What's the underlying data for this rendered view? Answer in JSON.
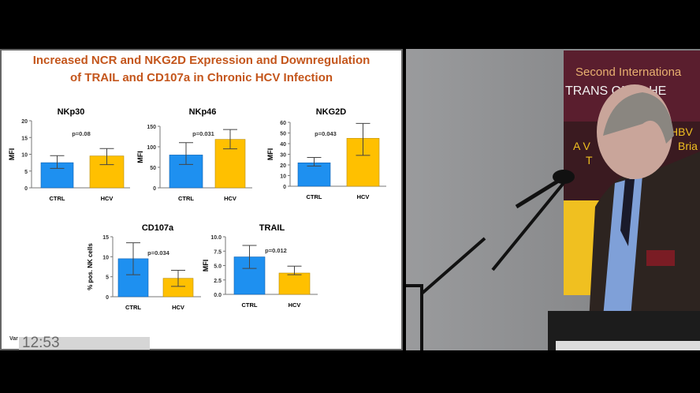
{
  "slide": {
    "title_line1": "Increased NCR and NKG2D Expression and Downregulation",
    "title_line2": "of TRAIL and CD107a in Chronic HCV Infection",
    "footer_fragment": "Var",
    "colors": {
      "ctrl": "#1e90f0",
      "hcv": "#ffc000",
      "title": "#c4561c"
    }
  },
  "video": {
    "timestamp": "12:53",
    "banner_line1": "Second Internationa",
    "banner_line2": "TRANS    ONAL HE",
    "banner_fragments": [
      "HBV",
      "A V",
      "Bria",
      "T"
    ]
  },
  "chart_data": [
    {
      "type": "bar",
      "title": "NKp30",
      "ylabel": "MFI",
      "categories": [
        "CTRL",
        "HCV"
      ],
      "values": [
        7.5,
        9.5
      ],
      "error_low": [
        5.8,
        6.9
      ],
      "error_high": [
        9.6,
        11.7
      ],
      "ylim": [
        0,
        20
      ],
      "yticks": [
        "0",
        "5",
        "10",
        "15",
        "20"
      ],
      "annotation": "p=0.08"
    },
    {
      "type": "bar",
      "title": "NKp46",
      "ylabel": "MFI",
      "categories": [
        "CTRL",
        "HCV"
      ],
      "values": [
        80,
        118
      ],
      "error_low": [
        57,
        95
      ],
      "error_high": [
        110,
        142
      ],
      "ylim": [
        0,
        150
      ],
      "yticks": [
        "0",
        "50",
        "100",
        "150"
      ],
      "annotation": "p=0.031"
    },
    {
      "type": "bar",
      "title": "NKG2D",
      "ylabel": "MFI",
      "categories": [
        "CTRL",
        "HCV"
      ],
      "values": [
        22,
        45
      ],
      "error_low": [
        19,
        29
      ],
      "error_high": [
        27,
        59
      ],
      "ylim": [
        0,
        60
      ],
      "yticks": [
        "0",
        "10",
        "20",
        "30",
        "40",
        "50",
        "60"
      ],
      "annotation": "p=0.043"
    },
    {
      "type": "bar",
      "title": "CD107a",
      "ylabel": "% pos. NK cells",
      "categories": [
        "CTRL",
        "HCV"
      ],
      "values": [
        9.5,
        4.6
      ],
      "error_low": [
        5.5,
        2.6
      ],
      "error_high": [
        13.5,
        6.6
      ],
      "ylim": [
        0,
        15
      ],
      "yticks": [
        "0",
        "5",
        "10",
        "15"
      ],
      "annotation": "p=0.034"
    },
    {
      "type": "bar",
      "title": "TRAIL",
      "ylabel": "MFI",
      "categories": [
        "CTRL",
        "HCV"
      ],
      "values": [
        6.5,
        3.7
      ],
      "error_low": [
        4.5,
        3.4
      ],
      "error_high": [
        8.5,
        4.9
      ],
      "ylim": [
        0,
        10
      ],
      "yticks": [
        "0.0",
        "2.5",
        "5.0",
        "7.5",
        "10.0"
      ],
      "annotation": "p=0.012"
    }
  ]
}
